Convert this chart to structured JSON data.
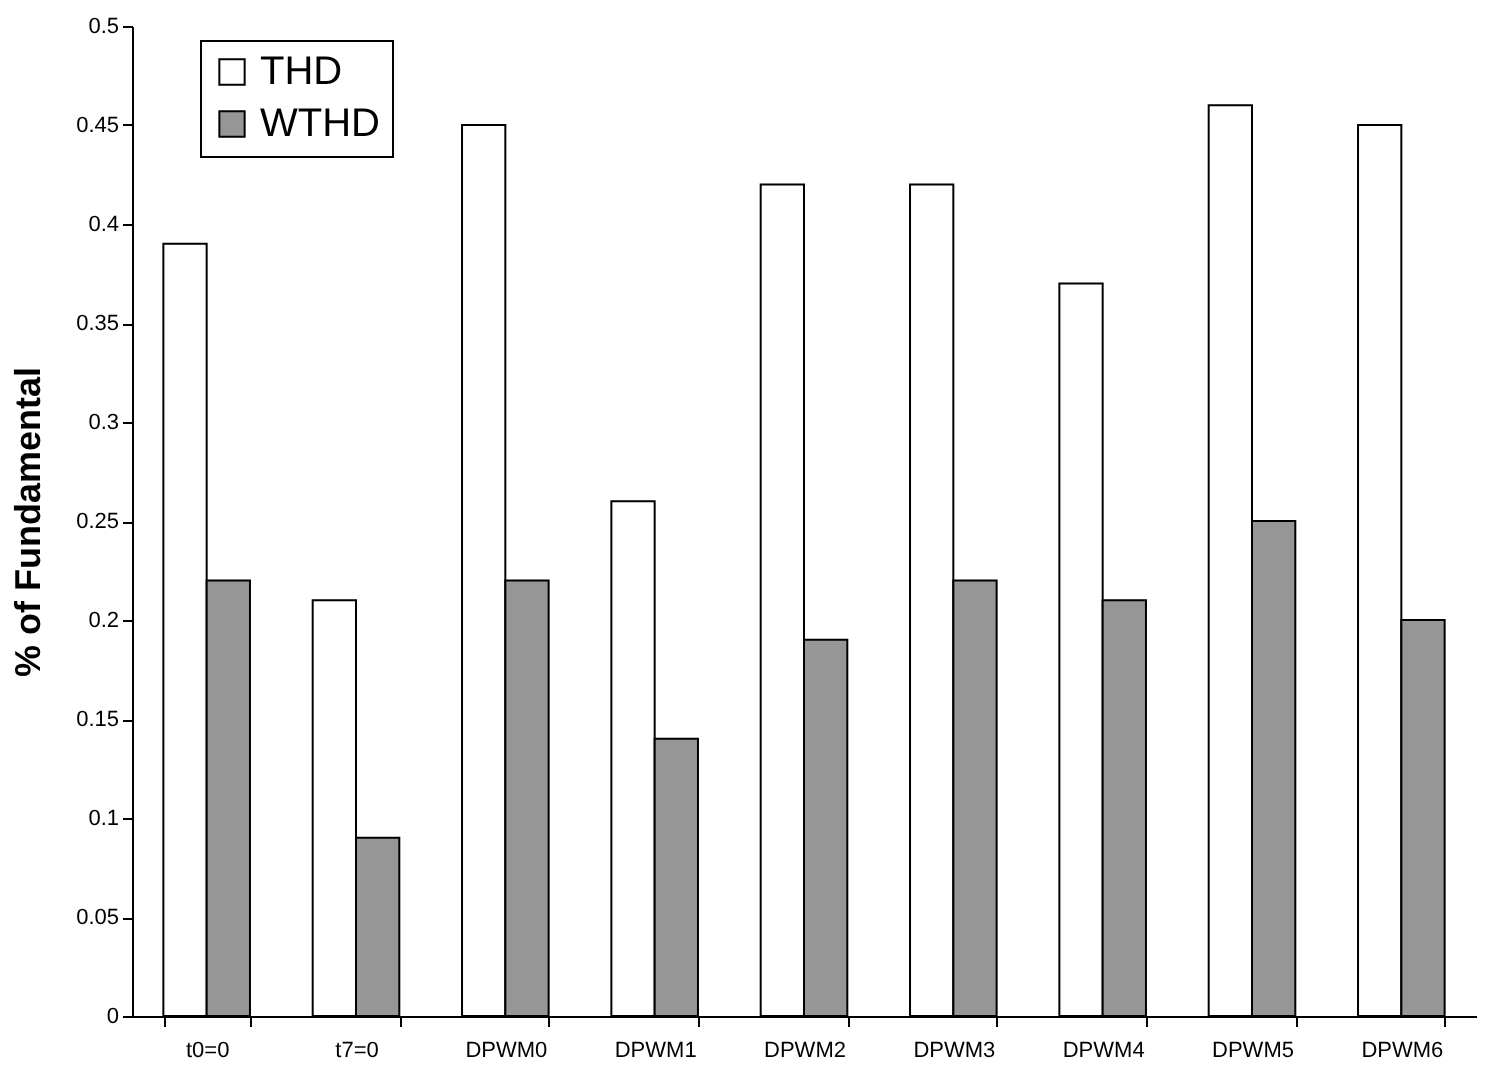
{
  "chart_data": {
    "type": "bar",
    "ylabel": "% of Fundamental",
    "categories": [
      "t0=0",
      "t7=0",
      "DPWM0",
      "DPWM1",
      "DPWM2",
      "DPWM3",
      "DPWM4",
      "DPWM5",
      "DPWM6"
    ],
    "series": [
      {
        "name": "THD",
        "color": "#ffffff",
        "values": [
          0.39,
          0.21,
          0.45,
          0.26,
          0.42,
          0.42,
          0.37,
          0.46,
          0.45
        ]
      },
      {
        "name": "WTHD",
        "color": "#969696",
        "values": [
          0.22,
          0.09,
          0.22,
          0.14,
          0.19,
          0.22,
          0.21,
          0.25,
          0.2
        ]
      }
    ],
    "ylim": [
      0,
      0.5
    ],
    "yticks": [
      0,
      0.05,
      0.1,
      0.15,
      0.2,
      0.25,
      0.3,
      0.35,
      0.4,
      0.45,
      0.5
    ],
    "grid": false,
    "legend": "top left"
  }
}
